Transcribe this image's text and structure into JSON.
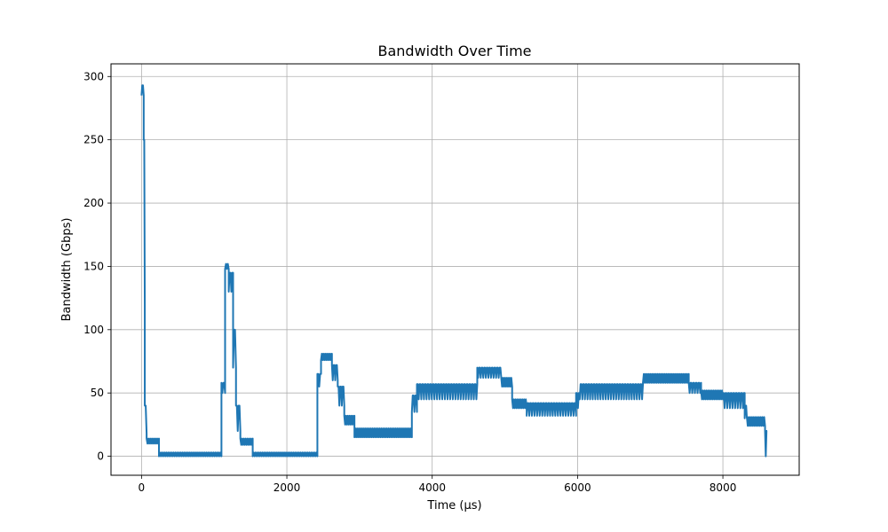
{
  "chart_data": {
    "type": "line",
    "title": "Bandwidth Over Time",
    "xlabel": "Time (µs)",
    "ylabel": "Bandwidth (Gbps)",
    "xlim": [
      -420,
      9050
    ],
    "ylim": [
      -15,
      310
    ],
    "xticks": [
      0,
      2000,
      4000,
      6000,
      8000
    ],
    "yticks": [
      0,
      50,
      100,
      150,
      200,
      250,
      300
    ],
    "grid": true,
    "line_color": "#1f77b4",
    "series": [
      {
        "segments": [
          {
            "x0": 0,
            "x1": 30,
            "y": [
              285,
              293
            ]
          },
          {
            "x0": 30,
            "x1": 45,
            "y": [
              120,
              250
            ]
          },
          {
            "x0": 45,
            "x1": 70,
            "y": [
              18,
              40
            ]
          },
          {
            "x0": 70,
            "x1": 240,
            "y": [
              10,
              14
            ]
          },
          {
            "x0": 240,
            "x1": 1100,
            "y": [
              0,
              3
            ]
          },
          {
            "x0": 1100,
            "x1": 1150,
            "y": [
              50,
              58
            ]
          },
          {
            "x0": 1150,
            "x1": 1200,
            "y": [
              148,
              152
            ]
          },
          {
            "x0": 1200,
            "x1": 1260,
            "y": [
              130,
              145
            ]
          },
          {
            "x0": 1260,
            "x1": 1300,
            "y": [
              70,
              100
            ]
          },
          {
            "x0": 1300,
            "x1": 1360,
            "y": [
              20,
              40
            ]
          },
          {
            "x0": 1360,
            "x1": 1530,
            "y": [
              9,
              14
            ]
          },
          {
            "x0": 1530,
            "x1": 2420,
            "y": [
              0,
              3
            ]
          },
          {
            "x0": 2420,
            "x1": 2470,
            "y": [
              55,
              65
            ]
          },
          {
            "x0": 2470,
            "x1": 2620,
            "y": [
              76,
              81
            ]
          },
          {
            "x0": 2620,
            "x1": 2700,
            "y": [
              60,
              72
            ]
          },
          {
            "x0": 2700,
            "x1": 2790,
            "y": [
              40,
              55
            ]
          },
          {
            "x0": 2790,
            "x1": 2930,
            "y": [
              25,
              32
            ]
          },
          {
            "x0": 2930,
            "x1": 3720,
            "y": [
              15,
              22
            ]
          },
          {
            "x0": 3720,
            "x1": 3790,
            "y": [
              35,
              48
            ]
          },
          {
            "x0": 3790,
            "x1": 4620,
            "y": [
              45,
              57
            ]
          },
          {
            "x0": 4620,
            "x1": 4950,
            "y": [
              62,
              70
            ]
          },
          {
            "x0": 4950,
            "x1": 5100,
            "y": [
              55,
              62
            ]
          },
          {
            "x0": 5100,
            "x1": 5300,
            "y": [
              38,
              45
            ]
          },
          {
            "x0": 5300,
            "x1": 5980,
            "y": [
              32,
              42
            ]
          },
          {
            "x0": 5980,
            "x1": 6030,
            "y": [
              38,
              50
            ]
          },
          {
            "x0": 6030,
            "x1": 6900,
            "y": [
              45,
              57
            ]
          },
          {
            "x0": 6900,
            "x1": 7530,
            "y": [
              58,
              65
            ]
          },
          {
            "x0": 7530,
            "x1": 7700,
            "y": [
              50,
              58
            ]
          },
          {
            "x0": 7700,
            "x1": 8000,
            "y": [
              45,
              52
            ]
          },
          {
            "x0": 8000,
            "x1": 8300,
            "y": [
              38,
              50
            ]
          },
          {
            "x0": 8300,
            "x1": 8330,
            "y": [
              30,
              40
            ]
          },
          {
            "x0": 8330,
            "x1": 8580,
            "y": [
              24,
              31
            ]
          },
          {
            "x0": 8580,
            "x1": 8610,
            "y": [
              0,
              20
            ]
          }
        ]
      }
    ]
  }
}
